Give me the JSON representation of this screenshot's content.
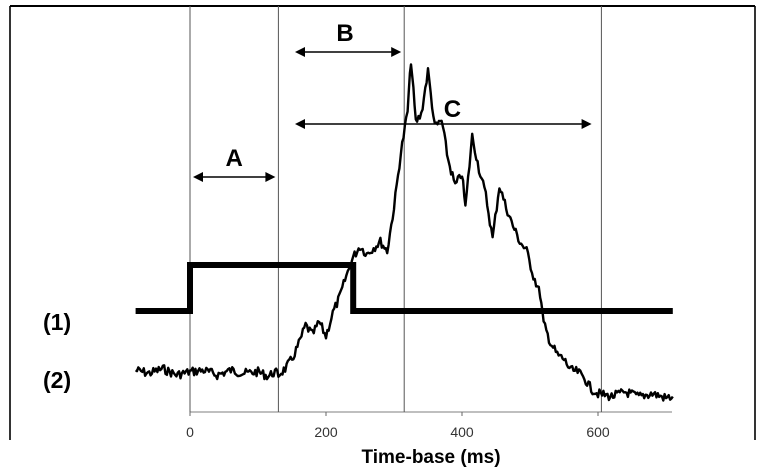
{
  "chart_data": {
    "type": "line",
    "title": "",
    "xlabel": "Time-base (ms)",
    "ylabel": "",
    "xlim": [
      -80,
      710
    ],
    "x_ticks": [
      0,
      200,
      400,
      600
    ],
    "grid": false,
    "legend": "none",
    "markers": [
      0,
      130,
      315,
      605
    ],
    "series": [
      {
        "name": "(1)",
        "points": [
          [
            -80,
            0
          ],
          [
            0,
            0
          ],
          [
            0,
            1
          ],
          [
            240,
            1
          ],
          [
            240,
            0
          ],
          [
            710,
            0
          ]
        ]
      },
      {
        "name": "(2)",
        "points": [
          [
            -80,
            0.05
          ],
          [
            -60,
            0.03
          ],
          [
            -40,
            0.06
          ],
          [
            -20,
            0.02
          ],
          [
            0,
            0.04
          ],
          [
            20,
            0.05
          ],
          [
            40,
            0.02
          ],
          [
            60,
            0.05
          ],
          [
            80,
            0.03
          ],
          [
            100,
            0.04
          ],
          [
            115,
            0.01
          ],
          [
            125,
            0.04
          ],
          [
            130,
            0.02
          ],
          [
            140,
            0.06
          ],
          [
            150,
            0.12
          ],
          [
            160,
            0.22
          ],
          [
            170,
            0.34
          ],
          [
            180,
            0.28
          ],
          [
            190,
            0.36
          ],
          [
            200,
            0.27
          ],
          [
            210,
            0.42
          ],
          [
            220,
            0.52
          ],
          [
            230,
            0.66
          ],
          [
            240,
            0.78
          ],
          [
            250,
            0.85
          ],
          [
            260,
            0.8
          ],
          [
            270,
            0.84
          ],
          [
            280,
            0.88
          ],
          [
            290,
            0.82
          ],
          [
            300,
            1.1
          ],
          [
            310,
            1.45
          ],
          [
            320,
            1.72
          ],
          [
            325,
            2.05
          ],
          [
            332,
            1.65
          ],
          [
            340,
            1.7
          ],
          [
            350,
            1.98
          ],
          [
            360,
            1.62
          ],
          [
            370,
            1.66
          ],
          [
            380,
            1.4
          ],
          [
            390,
            1.24
          ],
          [
            400,
            1.32
          ],
          [
            405,
            1.1
          ],
          [
            415,
            1.56
          ],
          [
            425,
            1.35
          ],
          [
            435,
            1.18
          ],
          [
            445,
            0.9
          ],
          [
            455,
            1.24
          ],
          [
            465,
            1.1
          ],
          [
            475,
            0.98
          ],
          [
            485,
            0.88
          ],
          [
            495,
            0.82
          ],
          [
            505,
            0.66
          ],
          [
            515,
            0.54
          ],
          [
            520,
            0.35
          ],
          [
            530,
            0.23
          ],
          [
            540,
            0.15
          ],
          [
            550,
            0.12
          ],
          [
            560,
            0.05
          ],
          [
            570,
            0.04
          ],
          [
            580,
            0.0
          ],
          [
            590,
            -0.07
          ],
          [
            600,
            -0.1
          ],
          [
            620,
            -0.12
          ],
          [
            640,
            -0.09
          ],
          [
            660,
            -0.12
          ],
          [
            680,
            -0.1
          ],
          [
            700,
            -0.13
          ],
          [
            710,
            -0.12
          ]
        ]
      }
    ],
    "annotations": [
      {
        "label": "A",
        "from": 0,
        "to": 130
      },
      {
        "label": "B",
        "from": 150,
        "to": 315
      },
      {
        "label": "C",
        "from": 150,
        "to": 595
      }
    ]
  }
}
